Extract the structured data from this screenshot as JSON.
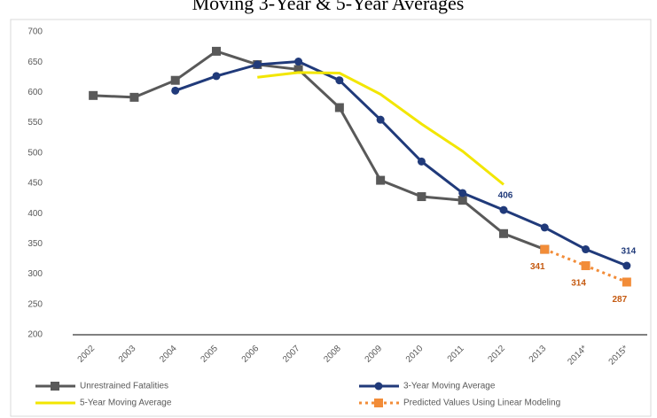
{
  "chart_data": {
    "type": "line",
    "title": "Moving 3-Year & 5-Year Averages",
    "categories": [
      "2002",
      "2003",
      "2004",
      "2005",
      "2006",
      "2007",
      "2008",
      "2009",
      "2010",
      "2011",
      "2012",
      "2013",
      "2014*",
      "2015*"
    ],
    "ylim": [
      200,
      700
    ],
    "yticks": [
      200,
      250,
      300,
      350,
      400,
      450,
      500,
      550,
      600,
      650,
      700
    ],
    "series": [
      {
        "name": "Unrestrained Fatalities",
        "color": "#595959",
        "marker": "square",
        "values": [
          595,
          592,
          620,
          668,
          646,
          638,
          575,
          455,
          428,
          422,
          367,
          341,
          null,
          null
        ]
      },
      {
        "name": "3-Year Moving Average",
        "color": "#203a7a",
        "marker": "circle",
        "values": [
          null,
          null,
          603,
          627,
          646,
          651,
          620,
          555,
          486,
          434,
          406,
          377,
          341,
          314
        ],
        "value_labels": [
          null,
          null,
          null,
          null,
          null,
          null,
          null,
          null,
          null,
          null,
          "406",
          null,
          null,
          "314"
        ]
      },
      {
        "name": "5-Year Moving Average",
        "color": "#f2e600",
        "marker": "none",
        "values": [
          null,
          null,
          null,
          null,
          625,
          633,
          632,
          597,
          548,
          503,
          448,
          null,
          null,
          null
        ]
      },
      {
        "name": "Predicted Values Using Linear Modeling",
        "color": "#f28c38",
        "marker": "square",
        "dashed": true,
        "values": [
          null,
          null,
          null,
          null,
          null,
          null,
          null,
          null,
          null,
          null,
          null,
          341,
          314,
          287
        ],
        "value_labels": [
          null,
          null,
          null,
          null,
          null,
          null,
          null,
          null,
          null,
          null,
          null,
          "341",
          "314",
          "287"
        ]
      }
    ]
  }
}
